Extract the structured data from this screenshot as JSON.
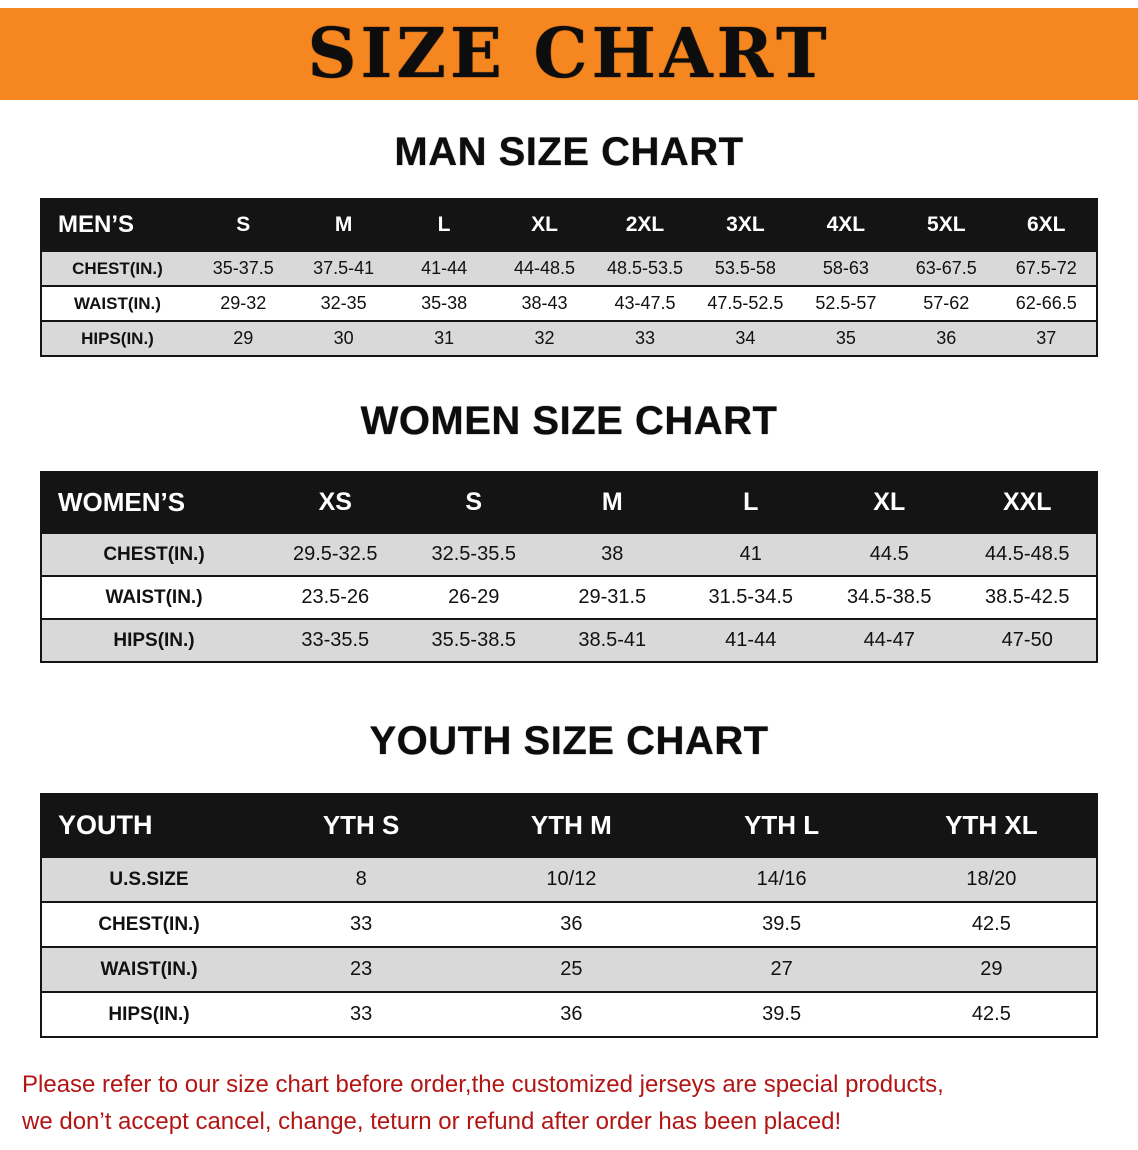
{
  "banner": {
    "title": "SIZE CHART",
    "bg_color": "#f6861f",
    "text_color": "#0d0d0d"
  },
  "men": {
    "heading": "MAN SIZE CHART",
    "header": [
      "MEN’S",
      "S",
      "M",
      "L",
      "XL",
      "2XL",
      "3XL",
      "4XL",
      "5XL",
      "6XL"
    ],
    "rows": [
      {
        "label": "CHEST(IN.)",
        "values": [
          "35-37.5",
          "37.5-41",
          "41-44",
          "44-48.5",
          "48.5-53.5",
          "53.5-58",
          "58-63",
          "63-67.5",
          "67.5-72"
        ]
      },
      {
        "label": "WAIST(IN.)",
        "values": [
          "29-32",
          "32-35",
          "35-38",
          "38-43",
          "43-47.5",
          "47.5-52.5",
          "52.5-57",
          "57-62",
          "62-66.5"
        ]
      },
      {
        "label": "HIPS(IN.)",
        "values": [
          "29",
          "30",
          "31",
          "32",
          "33",
          "34",
          "35",
          "36",
          "37"
        ]
      }
    ]
  },
  "women": {
    "heading": "WOMEN SIZE CHART",
    "header": [
      "WOMEN’S",
      "XS",
      "S",
      "M",
      "L",
      "XL",
      "XXL"
    ],
    "rows": [
      {
        "label": "CHEST(IN.)",
        "values": [
          "29.5-32.5",
          "32.5-35.5",
          "38",
          "41",
          "44.5",
          "44.5-48.5"
        ]
      },
      {
        "label": "WAIST(IN.)",
        "values": [
          "23.5-26",
          "26-29",
          "29-31.5",
          "31.5-34.5",
          "34.5-38.5",
          "38.5-42.5"
        ]
      },
      {
        "label": "HIPS(IN.)",
        "values": [
          "33-35.5",
          "35.5-38.5",
          "38.5-41",
          "41-44",
          "44-47",
          "47-50"
        ]
      }
    ]
  },
  "youth": {
    "heading": "YOUTH SIZE CHART",
    "header": [
      "YOUTH",
      "YTH S",
      "YTH M",
      "YTH L",
      "YTH XL"
    ],
    "rows": [
      {
        "label": "U.S.SIZE",
        "values": [
          "8",
          "10/12",
          "14/16",
          "18/20"
        ]
      },
      {
        "label": "CHEST(IN.)",
        "values": [
          "33",
          "36",
          "39.5",
          "42.5"
        ]
      },
      {
        "label": "WAIST(IN.)",
        "values": [
          "23",
          "25",
          "27",
          "29"
        ]
      },
      {
        "label": "HIPS(IN.)",
        "values": [
          "33",
          "36",
          "39.5",
          "42.5"
        ]
      }
    ]
  },
  "disclaimer": {
    "line1": "Please refer to our size chart before order,the customized jerseys are special products,",
    "line2": "we don’t accept cancel, change, teturn or refund after order has been placed!",
    "color": "#b31515"
  }
}
